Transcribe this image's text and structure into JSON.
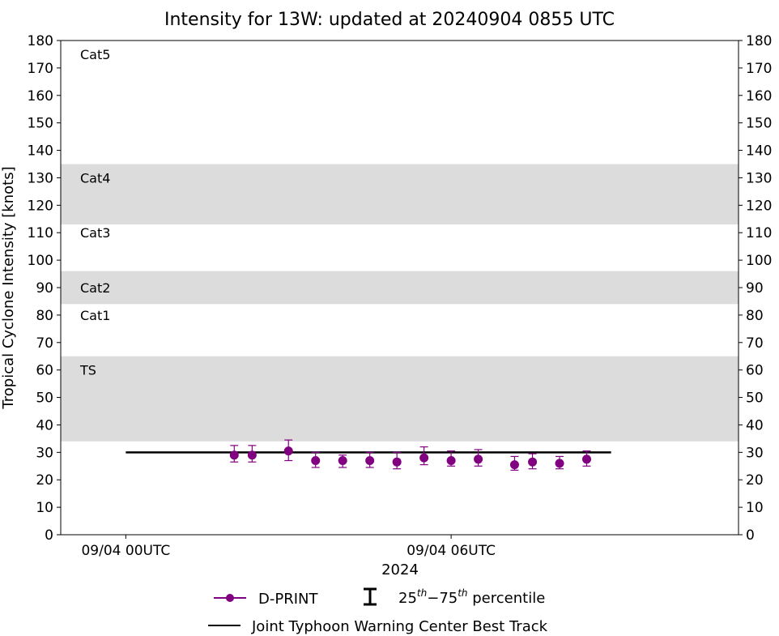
{
  "chart_data": {
    "type": "scatter",
    "title": "Intensity for 13W: updated at 20240904 0855 UTC",
    "ylabel": "Tropical Cyclone Intensity [knots]",
    "xlabel": "2024",
    "ylim": [
      0,
      180
    ],
    "yticks": [
      0,
      10,
      20,
      30,
      40,
      50,
      60,
      70,
      80,
      90,
      100,
      110,
      120,
      130,
      140,
      150,
      160,
      170,
      180
    ],
    "xlim_hours": [
      -1.2,
      11.3
    ],
    "xticks": [
      {
        "hour": 0,
        "label": "09/04 00UTC"
      },
      {
        "hour": 6,
        "label": "09/04 06UTC"
      }
    ],
    "grid": false,
    "bands": [
      {
        "from": 34,
        "to": 65,
        "color": "#dcdcdc"
      },
      {
        "from": 84,
        "to": 96,
        "color": "#dcdcdc"
      },
      {
        "from": 113,
        "to": 135,
        "color": "#dcdcdc"
      }
    ],
    "category_labels": [
      {
        "label": "Cat5",
        "y": 175
      },
      {
        "label": "Cat4",
        "y": 130
      },
      {
        "label": "Cat3",
        "y": 110
      },
      {
        "label": "Cat2",
        "y": 90
      },
      {
        "label": "Cat1",
        "y": 80
      },
      {
        "label": "TS",
        "y": 60
      }
    ],
    "best_track": {
      "name": "Joint Typhoon Warning Center Best Track",
      "x_hours": [
        0,
        8.95
      ],
      "value": 30,
      "color": "#000000"
    },
    "series": [
      {
        "name": "D-PRINT",
        "color": "#800080",
        "points": [
          {
            "x": 2.0,
            "y": 29,
            "p25": 26.5,
            "p75": 32.5
          },
          {
            "x": 2.33,
            "y": 29,
            "p25": 26.5,
            "p75": 32.5
          },
          {
            "x": 3.0,
            "y": 30.5,
            "p25": 27,
            "p75": 34.5
          },
          {
            "x": 3.5,
            "y": 27,
            "p25": 24.5,
            "p75": 30
          },
          {
            "x": 4.0,
            "y": 27,
            "p25": 24.5,
            "p75": 29
          },
          {
            "x": 4.5,
            "y": 27,
            "p25": 24.5,
            "p75": 30
          },
          {
            "x": 5.0,
            "y": 26.5,
            "p25": 24,
            "p75": 30
          },
          {
            "x": 5.5,
            "y": 28,
            "p25": 25.5,
            "p75": 32
          },
          {
            "x": 6.0,
            "y": 27,
            "p25": 25,
            "p75": 30.5
          },
          {
            "x": 6.5,
            "y": 27.5,
            "p25": 25,
            "p75": 31
          },
          {
            "x": 7.17,
            "y": 25.5,
            "p25": 23.5,
            "p75": 28.5
          },
          {
            "x": 7.5,
            "y": 26.5,
            "p25": 24,
            "p75": 29.5
          },
          {
            "x": 8.0,
            "y": 26,
            "p25": 24,
            "p75": 28.5
          },
          {
            "x": 8.5,
            "y": 27.5,
            "p25": 25,
            "p75": 30.5
          }
        ]
      }
    ],
    "legend": {
      "placement": "bottom-center",
      "items": [
        "D-PRINT",
        "25th−75th percentile",
        "Joint Typhoon Warning Center Best Track"
      ],
      "percentile_label": {
        "a": "25",
        "a_sup": "th",
        "dash": "−",
        "b": "75",
        "b_sup": "th",
        "rest": " percentile"
      }
    }
  }
}
